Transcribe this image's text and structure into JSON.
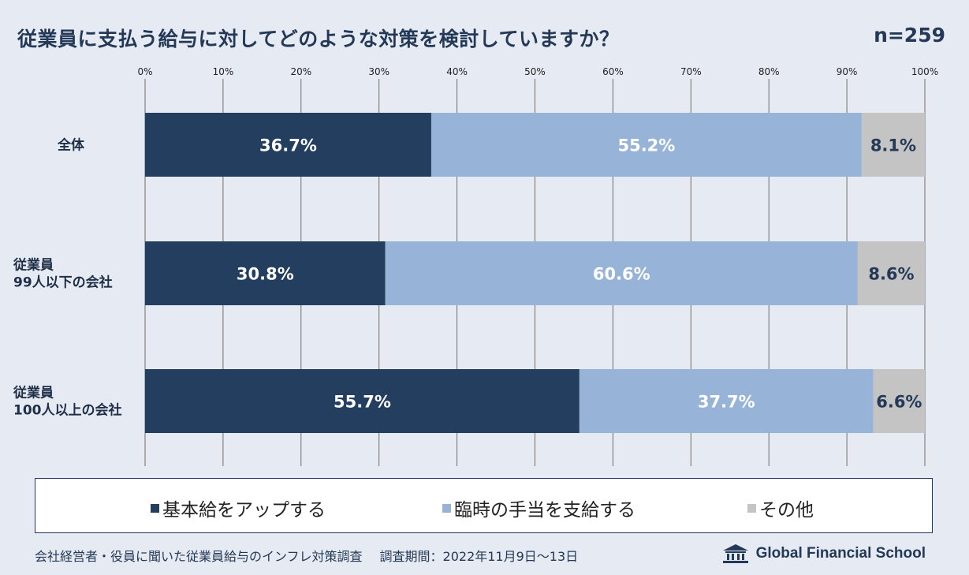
{
  "title": "従業員に支払う給与に対してどのような対策を検討していますか？",
  "n_label": "n=259",
  "colors": {
    "base_pay": "#243e5f",
    "temp_allowance": "#97b4d8",
    "other": "#c4c4c4",
    "grid": "#6e6e6e"
  },
  "chart_data": {
    "type": "bar",
    "orientation": "horizontal",
    "stacked": true,
    "x_ticks": [
      "0%",
      "10%",
      "20%",
      "30%",
      "40%",
      "50%",
      "60%",
      "70%",
      "80%",
      "90%",
      "100%"
    ],
    "xlim": [
      0,
      100
    ],
    "categories": [
      [
        "全体"
      ],
      [
        "従業員",
        "99人以下の会社"
      ],
      [
        "従業員",
        "100人以上の会社"
      ]
    ],
    "series": [
      {
        "name": "基本給をアップする",
        "values": [
          36.7,
          30.8,
          55.7
        ],
        "labels": [
          "36.7%",
          "30.8%",
          "55.7%"
        ]
      },
      {
        "name": "臨時の手当を支給する",
        "values": [
          55.2,
          60.6,
          37.7
        ],
        "labels": [
          "55.2%",
          "60.6%",
          "37.7%"
        ]
      },
      {
        "name": "その他",
        "values": [
          8.1,
          8.6,
          6.6
        ],
        "labels": [
          "8.1%",
          "8.6%",
          "6.6%"
        ]
      }
    ]
  },
  "legend": [
    {
      "label": "基本給をアップする",
      "color": "#243e5f"
    },
    {
      "label": "臨時の手当を支給する",
      "color": "#97b4d8"
    },
    {
      "label": "その他",
      "color": "#c4c4c4"
    }
  ],
  "footer": {
    "survey": "会社経営者・役員に聞いた従業員給与のインフレ対策調査",
    "period": "調査期間：2022年11月9日〜13日",
    "brand": "Global Financial School"
  }
}
